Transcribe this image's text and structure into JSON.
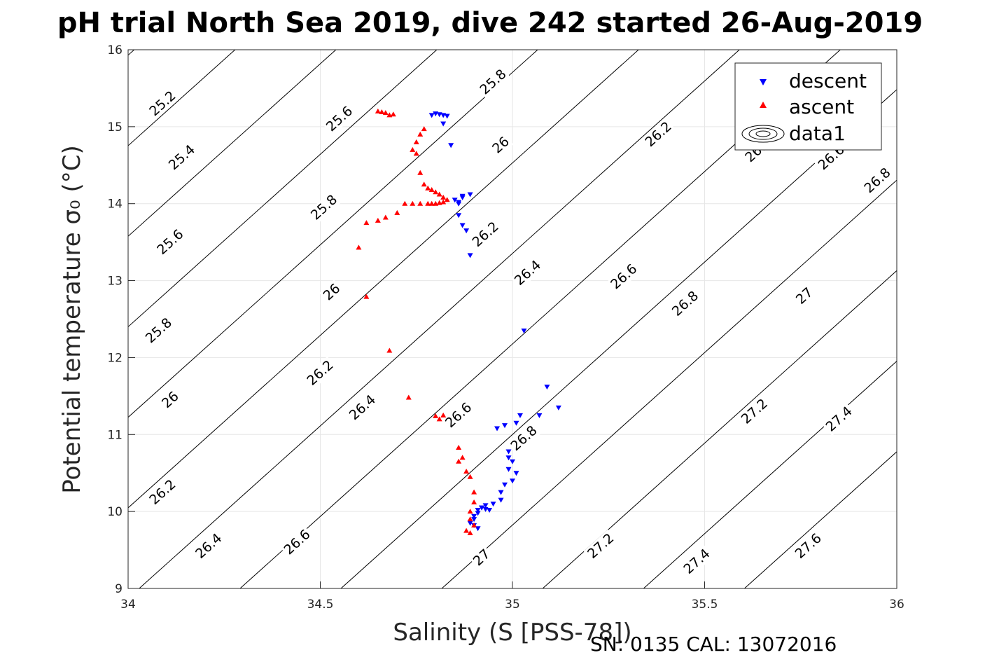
{
  "chart_data": {
    "type": "scatter",
    "title": "pH trial North Sea 2019, dive 242 started 26-Aug-2019",
    "xlabel": "Salinity (S [PSS-78])",
    "ylabel": "Potential temperature σ₀ (°C)",
    "xlim": [
      34,
      36
    ],
    "ylim": [
      9,
      16
    ],
    "x_ticks": [
      "34",
      "34.5",
      "35",
      "35.5",
      "36"
    ],
    "y_ticks": [
      "9",
      "10",
      "11",
      "12",
      "13",
      "14",
      "15",
      "16"
    ],
    "grid": true,
    "legend_position": "top-right",
    "footer": "SN: 0135  CAL: 13072016",
    "colors": {
      "descent": "#0000ff",
      "ascent": "#ff0000",
      "contour": "#000000"
    },
    "contours": {
      "name": "data1",
      "levels": [
        25.2,
        25.4,
        25.6,
        25.8,
        26,
        26.2,
        26.4,
        26.6,
        26.8,
        27,
        27.2,
        27.4,
        27.6
      ],
      "labels": [
        {
          "text": "25.2",
          "x": 34.09,
          "y": 15.3
        },
        {
          "text": "25.4",
          "x": 34.14,
          "y": 14.6
        },
        {
          "text": "25.6",
          "x": 34.11,
          "y": 13.5
        },
        {
          "text": "25.8",
          "x": 34.08,
          "y": 12.35
        },
        {
          "text": "26",
          "x": 34.11,
          "y": 11.45
        },
        {
          "text": "26.2",
          "x": 34.09,
          "y": 10.25
        },
        {
          "text": "26.4",
          "x": 34.21,
          "y": 9.55
        },
        {
          "text": "26.6",
          "x": 34.44,
          "y": 9.6
        },
        {
          "text": "27",
          "x": 34.92,
          "y": 9.4
        },
        {
          "text": "27.2",
          "x": 35.23,
          "y": 9.55
        },
        {
          "text": "27.4",
          "x": 35.48,
          "y": 9.35
        },
        {
          "text": "27.6",
          "x": 35.77,
          "y": 9.55
        },
        {
          "text": "25.6",
          "x": 34.55,
          "y": 15.1
        },
        {
          "text": "25.8",
          "x": 34.51,
          "y": 13.95
        },
        {
          "text": "26",
          "x": 34.53,
          "y": 12.85
        },
        {
          "text": "26.2",
          "x": 34.5,
          "y": 11.8
        },
        {
          "text": "26.4",
          "x": 34.61,
          "y": 11.35
        },
        {
          "text": "26.6",
          "x": 34.86,
          "y": 11.25
        },
        {
          "text": "26.8",
          "x": 35.03,
          "y": 10.95
        },
        {
          "text": "25.8",
          "x": 34.95,
          "y": 15.58
        },
        {
          "text": "26",
          "x": 34.97,
          "y": 14.76
        },
        {
          "text": "26.2",
          "x": 34.93,
          "y": 13.6
        },
        {
          "text": "26.4",
          "x": 35.04,
          "y": 13.1
        },
        {
          "text": "26.6",
          "x": 35.29,
          "y": 13.05
        },
        {
          "text": "26.8",
          "x": 35.45,
          "y": 12.7
        },
        {
          "text": "27",
          "x": 35.76,
          "y": 12.8
        },
        {
          "text": "27.2",
          "x": 35.63,
          "y": 11.3
        },
        {
          "text": "27.4",
          "x": 35.85,
          "y": 11.2
        },
        {
          "text": "26.2",
          "x": 35.38,
          "y": 14.9
        },
        {
          "text": "26.4",
          "x": 35.64,
          "y": 14.7
        },
        {
          "text": "26.6",
          "x": 35.83,
          "y": 14.6
        },
        {
          "text": "26.8",
          "x": 35.95,
          "y": 14.3
        }
      ]
    },
    "series": [
      {
        "name": "descent",
        "marker": "triangle-down",
        "x": [
          34.79,
          34.8,
          34.81,
          34.82,
          34.83,
          34.84,
          34.82,
          34.85,
          34.87,
          34.86,
          34.87,
          34.88,
          34.89,
          34.86,
          34.86,
          34.87,
          34.89,
          35.03,
          35.09,
          35.12,
          35.07,
          35.02,
          35.01,
          34.98,
          34.96,
          34.99,
          34.99,
          35,
          34.99,
          35.01,
          35,
          34.98,
          34.97,
          34.97,
          34.95,
          34.93,
          34.92,
          34.91,
          34.91,
          34.9,
          34.9,
          34.89,
          34.9,
          34.91,
          34.92,
          34.93,
          34.94
        ],
        "y": [
          15.15,
          15.17,
          15.16,
          15.15,
          15.14,
          14.76,
          15.04,
          14.05,
          14.1,
          13.85,
          13.72,
          13.65,
          14.12,
          14.02,
          14.0,
          14.08,
          13.33,
          12.35,
          11.62,
          11.35,
          11.25,
          11.25,
          11.15,
          11.12,
          11.08,
          10.78,
          10.7,
          10.65,
          10.55,
          10.5,
          10.4,
          10.35,
          10.25,
          10.15,
          10.1,
          10.08,
          10.05,
          10.02,
          9.98,
          9.94,
          9.9,
          9.85,
          9.82,
          9.78,
          10.05,
          10.03,
          10.02
        ]
      },
      {
        "name": "ascent",
        "marker": "triangle-up",
        "x": [
          34.65,
          34.66,
          34.67,
          34.69,
          34.68,
          34.77,
          34.76,
          34.75,
          34.74,
          34.75,
          34.76,
          34.77,
          34.78,
          34.79,
          34.8,
          34.81,
          34.82,
          34.83,
          34.82,
          34.81,
          34.8,
          34.79,
          34.78,
          34.76,
          34.74,
          34.72,
          34.7,
          34.67,
          34.65,
          34.62,
          34.6,
          34.62,
          34.68,
          34.73,
          34.8,
          34.82,
          34.81,
          34.86,
          34.87,
          34.86,
          34.88,
          34.89,
          34.9,
          34.9,
          34.89,
          34.89,
          34.9,
          34.88,
          34.89
        ],
        "y": [
          15.2,
          15.19,
          15.18,
          15.16,
          15.15,
          14.97,
          14.9,
          14.8,
          14.7,
          14.65,
          14.4,
          14.25,
          14.2,
          14.18,
          14.15,
          14.12,
          14.08,
          14.05,
          14.02,
          14.01,
          14.0,
          14.0,
          14.0,
          14.0,
          14.0,
          14.0,
          13.88,
          13.82,
          13.78,
          13.75,
          13.43,
          12.79,
          12.09,
          11.48,
          11.24,
          11.25,
          11.2,
          10.83,
          10.7,
          10.65,
          10.52,
          10.45,
          10.25,
          10.12,
          10.0,
          9.9,
          9.82,
          9.75,
          9.72
        ]
      }
    ]
  }
}
